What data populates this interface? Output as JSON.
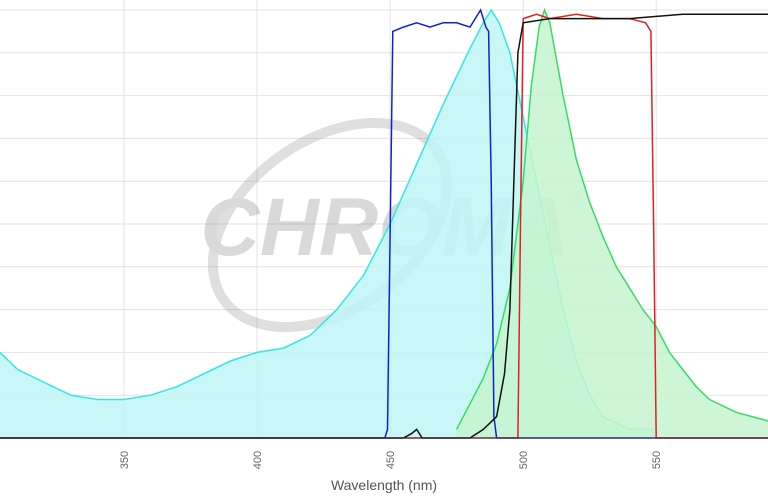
{
  "chart_data": {
    "type": "line",
    "x_label": "Wavelength (nm)",
    "watermark": "CHROMA",
    "watermark_mark": "®",
    "xlim": [
      303.4,
      592
    ],
    "ylim": [
      0,
      100
    ],
    "xticks": [
      350,
      400,
      450,
      500,
      550
    ],
    "yticks": [
      0,
      10,
      20,
      30,
      40,
      50,
      60,
      70,
      80,
      90,
      100
    ],
    "grid": true,
    "series": [
      {
        "color": "#33e6e6",
        "fill": "#bff5f5",
        "area": true,
        "x": [
          303.4,
          310,
          320,
          330,
          340,
          350,
          360,
          370,
          380,
          390,
          400,
          410,
          420,
          430,
          440,
          450,
          460,
          470,
          480,
          485,
          488,
          491,
          495,
          500,
          505,
          510,
          515,
          520,
          525,
          530,
          540,
          550
        ],
        "values": [
          20,
          16,
          13,
          10,
          9,
          9,
          10,
          12,
          15,
          18,
          20,
          21,
          24,
          30,
          38,
          50,
          64,
          78,
          91,
          97,
          100,
          97,
          90,
          75,
          60,
          45,
          30,
          18,
          10,
          5,
          2,
          2
        ]
      },
      {
        "color": "#33dd66",
        "fill": "#c5f5cf",
        "area": true,
        "x": [
          475,
          480,
          485,
          490,
          495,
          500,
          503,
          506,
          508,
          510,
          515,
          520,
          525,
          530,
          535,
          540,
          545,
          550,
          555,
          560,
          565,
          570,
          580,
          592
        ],
        "values": [
          2,
          8,
          14,
          22,
          35,
          60,
          82,
          96,
          100,
          97,
          80,
          65,
          55,
          47,
          40,
          35,
          30,
          26,
          20,
          16,
          12,
          9,
          6,
          4
        ]
      },
      {
        "color": "#1122cc",
        "area": false,
        "x": [
          303.4,
          380,
          448,
          449,
          451,
          455,
          460,
          465,
          470,
          475,
          480,
          484,
          486,
          487,
          488,
          489,
          490,
          592
        ],
        "values": [
          0,
          0,
          0,
          2,
          95,
          96,
          97,
          96,
          97,
          97,
          96,
          100,
          96,
          95,
          60,
          5,
          0,
          0
        ]
      },
      {
        "color": "#dd2222",
        "area": false,
        "x": [
          303.4,
          498,
          499,
          500,
          505,
          510,
          520,
          530,
          540,
          546,
          548,
          549,
          550,
          592
        ],
        "values": [
          0,
          0,
          50,
          98,
          99,
          98,
          99,
          98,
          98,
          97,
          95,
          50,
          0,
          0
        ]
      },
      {
        "color": "#111111",
        "area": false,
        "x": [
          303.4,
          455,
          458,
          460,
          462,
          480,
          485,
          490,
          493,
          495,
          497,
          498,
          500,
          510,
          520,
          540,
          560,
          580,
          592
        ],
        "values": [
          0,
          0,
          1,
          2,
          0,
          0,
          2,
          5,
          15,
          30,
          70,
          90,
          97,
          98,
          98,
          98,
          99,
          99,
          99
        ]
      }
    ]
  }
}
